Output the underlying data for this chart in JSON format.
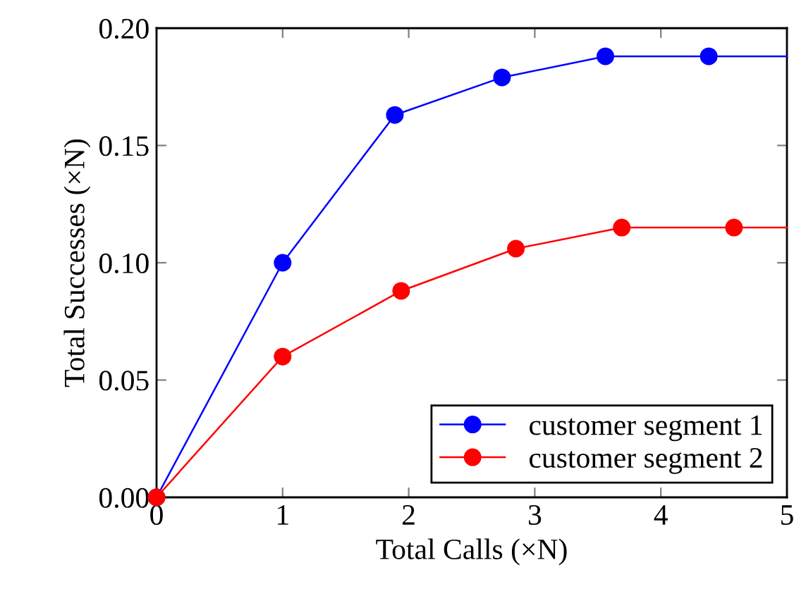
{
  "chart_data": {
    "type": "line",
    "xlabel": "Total Calls (×N)",
    "ylabel": "Total Successes (×N)",
    "xlim": [
      0,
      5
    ],
    "xticks": [
      0,
      1,
      2,
      3,
      4,
      5
    ],
    "ylim": [
      0,
      0.2
    ],
    "yticks": [
      {
        "value": 0,
        "label": "0.00"
      },
      {
        "value": 0.05,
        "label": "0.05"
      },
      {
        "value": 0.1,
        "label": "0.10"
      },
      {
        "value": 0.15,
        "label": "0.15"
      },
      {
        "value": 0.2,
        "label": "0.20"
      }
    ],
    "grid": false,
    "legend": "bottom right",
    "marker": "circle",
    "line_style": "solid",
    "series": [
      {
        "name": "customer segment 1",
        "color": "#0000ff",
        "x": [
          0,
          1,
          1.89,
          2.74,
          3.56,
          4.38,
          5
        ],
        "values": [
          0,
          0.1,
          0.163,
          0.179,
          0.188,
          0.188,
          0.188
        ]
      },
      {
        "name": "customer segment 2",
        "color": "#ff0000",
        "x": [
          0,
          1,
          1.94,
          2.85,
          3.69,
          4.58,
          5
        ],
        "values": [
          0,
          0.06,
          0.088,
          0.106,
          0.115,
          0.115,
          0.115
        ]
      }
    ]
  }
}
